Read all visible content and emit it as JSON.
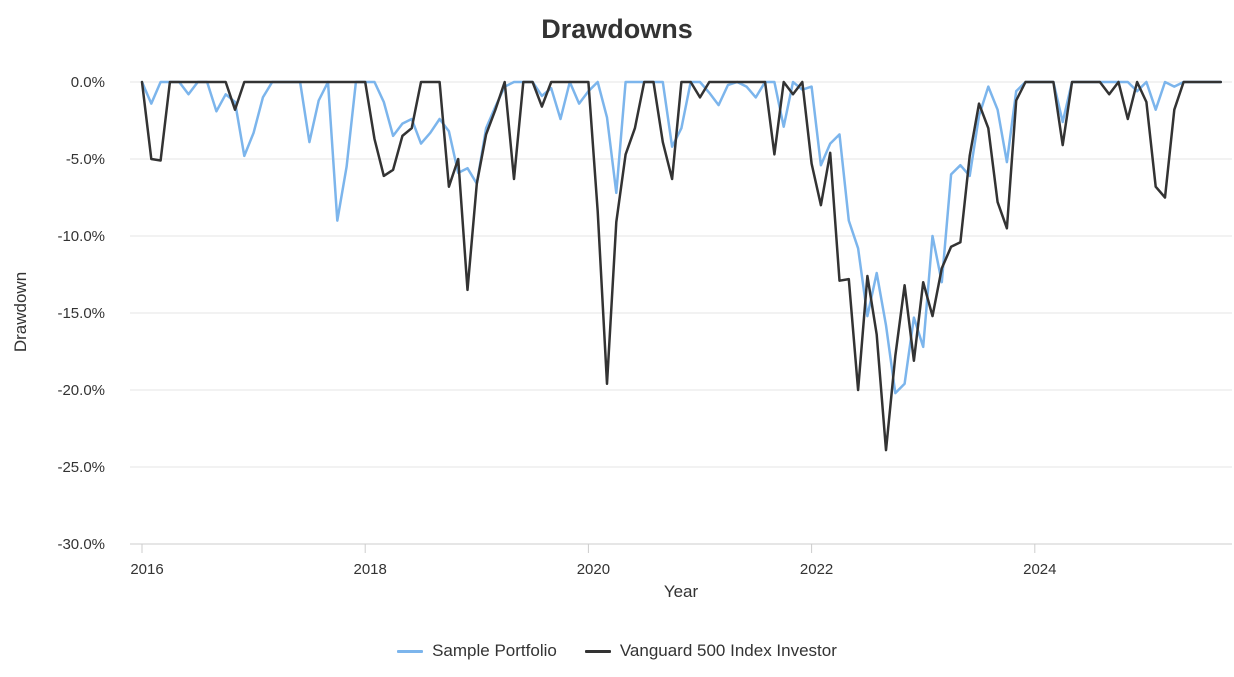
{
  "chart_data": {
    "type": "line",
    "title": "Drawdowns",
    "xlabel": "Year",
    "ylabel": "Drawdown",
    "x_range": [
      "2016-01",
      "2025-09"
    ],
    "ylim": [
      -30,
      0
    ],
    "x_ticks": [
      "2016",
      "2018",
      "2020",
      "2022",
      "2024"
    ],
    "y_ticks": [
      "0.0%",
      "-5.0%",
      "-10.0%",
      "-15.0%",
      "-20.0%",
      "-25.0%",
      "-30.0%"
    ],
    "y_tick_values": [
      0,
      -5,
      -10,
      -15,
      -20,
      -25,
      -30
    ],
    "grid": "horizontal",
    "legend_position": "bottom",
    "series": [
      {
        "name": "Sample Portfolio",
        "color": "#7cb5ec",
        "points": [
          [
            "2016-01",
            0
          ],
          [
            "2016-02",
            -1.4
          ],
          [
            "2016-03",
            0
          ],
          [
            "2016-04",
            0
          ],
          [
            "2016-05",
            0
          ],
          [
            "2016-06",
            -0.8
          ],
          [
            "2016-07",
            0
          ],
          [
            "2016-08",
            0
          ],
          [
            "2016-09",
            -1.9
          ],
          [
            "2016-10",
            -0.8
          ],
          [
            "2016-11",
            -1.3
          ],
          [
            "2016-12",
            -4.8
          ],
          [
            "2017-01",
            -3.3
          ],
          [
            "2017-02",
            -1.0
          ],
          [
            "2017-03",
            0
          ],
          [
            "2017-04",
            0
          ],
          [
            "2017-05",
            0
          ],
          [
            "2017-06",
            0
          ],
          [
            "2017-07",
            -3.9
          ],
          [
            "2017-08",
            -1.2
          ],
          [
            "2017-09",
            0
          ],
          [
            "2017-10",
            -9.0
          ],
          [
            "2017-11",
            -5.5
          ],
          [
            "2017-12",
            0
          ],
          [
            "2018-01",
            0
          ],
          [
            "2018-02",
            0
          ],
          [
            "2018-03",
            -1.3
          ],
          [
            "2018-04",
            -3.5
          ],
          [
            "2018-05",
            -2.7
          ],
          [
            "2018-06",
            -2.4
          ],
          [
            "2018-07",
            -4.0
          ],
          [
            "2018-08",
            -3.3
          ],
          [
            "2018-09",
            -2.4
          ],
          [
            "2018-10",
            -3.2
          ],
          [
            "2018-11",
            -5.9
          ],
          [
            "2018-12",
            -5.6
          ],
          [
            "2019-01",
            -6.6
          ],
          [
            "2019-02",
            -3.0
          ],
          [
            "2019-03",
            -1.6
          ],
          [
            "2019-04",
            -0.3
          ],
          [
            "2019-05",
            0
          ],
          [
            "2019-06",
            0
          ],
          [
            "2019-07",
            0
          ],
          [
            "2019-08",
            -0.9
          ],
          [
            "2019-09",
            -0.4
          ],
          [
            "2019-10",
            -2.4
          ],
          [
            "2019-11",
            0
          ],
          [
            "2019-12",
            -1.4
          ],
          [
            "2020-01",
            -0.6
          ],
          [
            "2020-02",
            0
          ],
          [
            "2020-03",
            -2.3
          ],
          [
            "2020-04",
            -7.2
          ],
          [
            "2020-05",
            0
          ],
          [
            "2020-06",
            0
          ],
          [
            "2020-07",
            0
          ],
          [
            "2020-08",
            0
          ],
          [
            "2020-09",
            0
          ],
          [
            "2020-10",
            -4.2
          ],
          [
            "2020-11",
            -3.0
          ],
          [
            "2020-12",
            0
          ],
          [
            "2021-01",
            0
          ],
          [
            "2021-02",
            -0.7
          ],
          [
            "2021-03",
            -1.5
          ],
          [
            "2021-04",
            -0.2
          ],
          [
            "2021-05",
            0
          ],
          [
            "2021-06",
            -0.3
          ],
          [
            "2021-07",
            -1.0
          ],
          [
            "2021-08",
            0
          ],
          [
            "2021-09",
            0
          ],
          [
            "2021-10",
            -2.9
          ],
          [
            "2021-11",
            0
          ],
          [
            "2021-12",
            -0.5
          ],
          [
            "2022-01",
            -0.3
          ],
          [
            "2022-02",
            -5.4
          ],
          [
            "2022-03",
            -4.0
          ],
          [
            "2022-04",
            -3.4
          ],
          [
            "2022-05",
            -9.0
          ],
          [
            "2022-06",
            -10.8
          ],
          [
            "2022-07",
            -15.2
          ],
          [
            "2022-08",
            -12.4
          ],
          [
            "2022-09",
            -15.8
          ],
          [
            "2022-10",
            -20.2
          ],
          [
            "2022-11",
            -19.6
          ],
          [
            "2022-12",
            -15.3
          ],
          [
            "2023-01",
            -17.2
          ],
          [
            "2023-02",
            -10.0
          ],
          [
            "2023-03",
            -13.0
          ],
          [
            "2023-04",
            -6.0
          ],
          [
            "2023-05",
            -5.4
          ],
          [
            "2023-06",
            -6.1
          ],
          [
            "2023-07",
            -2.2
          ],
          [
            "2023-08",
            -0.3
          ],
          [
            "2023-09",
            -1.8
          ],
          [
            "2023-10",
            -5.2
          ],
          [
            "2023-11",
            -0.6
          ],
          [
            "2023-12",
            0
          ],
          [
            "2024-01",
            0
          ],
          [
            "2024-02",
            0
          ],
          [
            "2024-03",
            0
          ],
          [
            "2024-04",
            -2.6
          ],
          [
            "2024-05",
            0
          ],
          [
            "2024-06",
            0
          ],
          [
            "2024-07",
            0
          ],
          [
            "2024-08",
            0
          ],
          [
            "2024-09",
            0
          ],
          [
            "2024-10",
            0
          ],
          [
            "2024-11",
            0
          ],
          [
            "2024-12",
            -0.6
          ],
          [
            "2025-01",
            0
          ],
          [
            "2025-02",
            -1.8
          ],
          [
            "2025-03",
            0
          ],
          [
            "2025-04",
            -0.3
          ],
          [
            "2025-05",
            0
          ],
          [
            "2025-06",
            0
          ],
          [
            "2025-07",
            0
          ],
          [
            "2025-08",
            0
          ],
          [
            "2025-09",
            0
          ]
        ]
      },
      {
        "name": "Vanguard 500 Index Investor",
        "color": "#333333",
        "points": [
          [
            "2016-01",
            0
          ],
          [
            "2016-02",
            -5.0
          ],
          [
            "2016-03",
            -5.1
          ],
          [
            "2016-04",
            0
          ],
          [
            "2016-05",
            0
          ],
          [
            "2016-06",
            0
          ],
          [
            "2016-07",
            0
          ],
          [
            "2016-08",
            0
          ],
          [
            "2016-09",
            0
          ],
          [
            "2016-10",
            0
          ],
          [
            "2016-11",
            -1.8
          ],
          [
            "2016-12",
            0
          ],
          [
            "2017-01",
            0
          ],
          [
            "2017-02",
            0
          ],
          [
            "2017-03",
            0
          ],
          [
            "2017-04",
            0
          ],
          [
            "2017-05",
            0
          ],
          [
            "2017-06",
            0
          ],
          [
            "2017-07",
            0
          ],
          [
            "2017-08",
            0
          ],
          [
            "2017-09",
            0
          ],
          [
            "2017-10",
            0
          ],
          [
            "2017-11",
            0
          ],
          [
            "2017-12",
            0
          ],
          [
            "2018-01",
            0
          ],
          [
            "2018-02",
            -3.7
          ],
          [
            "2018-03",
            -6.1
          ],
          [
            "2018-04",
            -5.7
          ],
          [
            "2018-05",
            -3.5
          ],
          [
            "2018-06",
            -3.0
          ],
          [
            "2018-07",
            0
          ],
          [
            "2018-08",
            0
          ],
          [
            "2018-09",
            0
          ],
          [
            "2018-10",
            -6.8
          ],
          [
            "2018-11",
            -5.0
          ],
          [
            "2018-12",
            -13.5
          ],
          [
            "2019-01",
            -6.6
          ],
          [
            "2019-02",
            -3.4
          ],
          [
            "2019-03",
            -1.8
          ],
          [
            "2019-04",
            0
          ],
          [
            "2019-05",
            -6.3
          ],
          [
            "2019-06",
            0
          ],
          [
            "2019-07",
            0
          ],
          [
            "2019-08",
            -1.6
          ],
          [
            "2019-09",
            0
          ],
          [
            "2019-10",
            0
          ],
          [
            "2019-11",
            0
          ],
          [
            "2019-12",
            0
          ],
          [
            "2020-01",
            0
          ],
          [
            "2020-02",
            -8.4
          ],
          [
            "2020-03",
            -19.6
          ],
          [
            "2020-04",
            -9.1
          ],
          [
            "2020-05",
            -4.7
          ],
          [
            "2020-06",
            -3.0
          ],
          [
            "2020-07",
            0
          ],
          [
            "2020-08",
            0
          ],
          [
            "2020-09",
            -3.9
          ],
          [
            "2020-10",
            -6.3
          ],
          [
            "2020-11",
            0
          ],
          [
            "2020-12",
            0
          ],
          [
            "2021-01",
            -1.0
          ],
          [
            "2021-02",
            0
          ],
          [
            "2021-03",
            0
          ],
          [
            "2021-04",
            0
          ],
          [
            "2021-05",
            0
          ],
          [
            "2021-06",
            0
          ],
          [
            "2021-07",
            0
          ],
          [
            "2021-08",
            0
          ],
          [
            "2021-09",
            -4.7
          ],
          [
            "2021-10",
            0
          ],
          [
            "2021-11",
            -0.8
          ],
          [
            "2021-12",
            0
          ],
          [
            "2022-01",
            -5.3
          ],
          [
            "2022-02",
            -8.0
          ],
          [
            "2022-03",
            -4.6
          ],
          [
            "2022-04",
            -12.9
          ],
          [
            "2022-05",
            -12.8
          ],
          [
            "2022-06",
            -20.0
          ],
          [
            "2022-07",
            -12.6
          ],
          [
            "2022-08",
            -16.4
          ],
          [
            "2022-09",
            -23.9
          ],
          [
            "2022-10",
            -17.8
          ],
          [
            "2022-11",
            -13.2
          ],
          [
            "2022-12",
            -18.1
          ],
          [
            "2023-01",
            -13.0
          ],
          [
            "2023-02",
            -15.2
          ],
          [
            "2023-03",
            -12.1
          ],
          [
            "2023-04",
            -10.7
          ],
          [
            "2023-05",
            -10.4
          ],
          [
            "2023-06",
            -4.8
          ],
          [
            "2023-07",
            -1.4
          ],
          [
            "2023-08",
            -3.0
          ],
          [
            "2023-09",
            -7.8
          ],
          [
            "2023-10",
            -9.5
          ],
          [
            "2023-11",
            -1.2
          ],
          [
            "2023-12",
            0
          ],
          [
            "2024-01",
            0
          ],
          [
            "2024-02",
            0
          ],
          [
            "2024-03",
            0
          ],
          [
            "2024-04",
            -4.1
          ],
          [
            "2024-05",
            0
          ],
          [
            "2024-06",
            0
          ],
          [
            "2024-07",
            0
          ],
          [
            "2024-08",
            0
          ],
          [
            "2024-09",
            -0.8
          ],
          [
            "2024-10",
            0
          ],
          [
            "2024-11",
            -2.4
          ],
          [
            "2024-12",
            0
          ],
          [
            "2025-01",
            -1.3
          ],
          [
            "2025-02",
            -6.8
          ],
          [
            "2025-03",
            -7.5
          ],
          [
            "2025-04",
            -1.8
          ],
          [
            "2025-05",
            0
          ],
          [
            "2025-06",
            0
          ],
          [
            "2025-07",
            0
          ],
          [
            "2025-08",
            0
          ],
          [
            "2025-09",
            0
          ]
        ]
      }
    ]
  }
}
